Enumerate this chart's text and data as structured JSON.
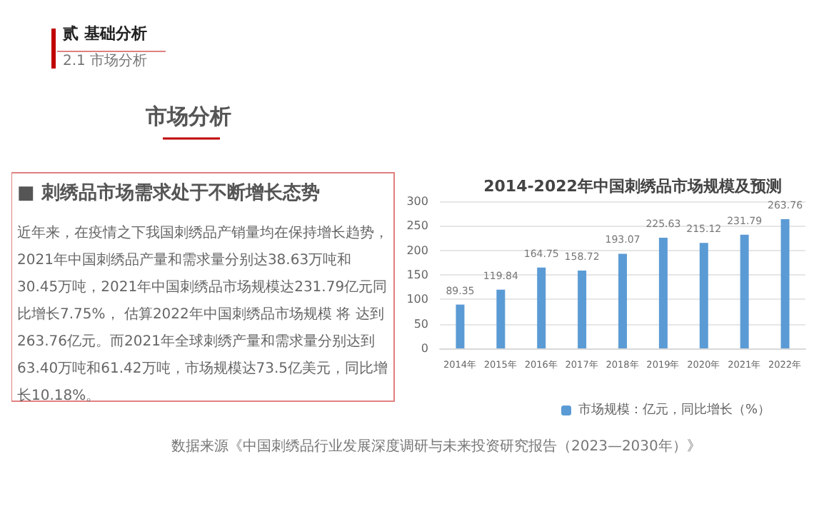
{
  "chart_data": {
    "type": "bar",
    "title": "2014-2022年中国刺绣品市场规模及预测",
    "categories": [
      "2014年",
      "2015年",
      "2016年",
      "2017年",
      "2018年",
      "2019年",
      "2020年",
      "2021年",
      "2022年"
    ],
    "series": [
      {
        "name": "市场规模：亿元，同比增长（%）",
        "color": "#5b9bd5",
        "values": [
          89.35,
          119.84,
          164.75,
          158.72,
          193.07,
          225.63,
          215.12,
          231.79,
          263.76
        ]
      }
    ],
    "ylim": [
      0,
      300
    ],
    "yticks": [
      0,
      50,
      100,
      150,
      200,
      250,
      300
    ],
    "grid": "y",
    "legend": "bottom",
    "data_labels": true,
    "annotations": [
      "贰 基础分析",
      "2.1 市场分析",
      "市场分析",
      "■ 刺绣品市场需求处于不断增长态势",
      "近年来，在疫情之下我国刺绣品产销量均在保持增长趋势，2021年中国刺绣品产量和需求量分别达38.63万吨和30.45万吨，2021年中国刺绣品市场规模达231.79亿元同比增长7.75%， 估算2022年中国刺绣品市场规模 将 达到263.76亿元。而2021年全球刺绣产量和需求量分别达到63.40万吨和61.42万吨，市场规模达73.5亿美元，同比增长10.18%。",
      "数据来源《中国刺绣品行业发展深度调研与未来投资研究报告（2023—2030年）》"
    ]
  }
}
